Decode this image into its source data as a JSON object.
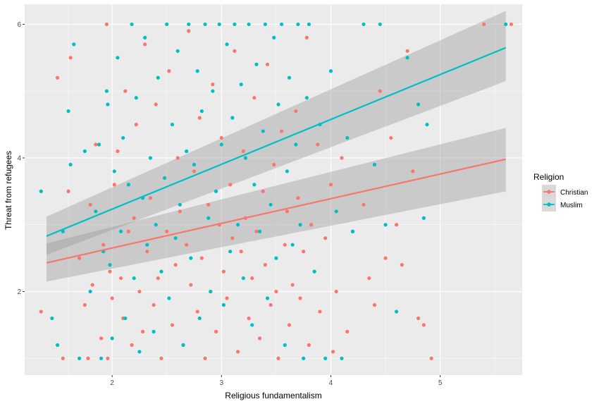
{
  "chart_data": {
    "type": "scatter",
    "xlabel": "Religious fundamentalism",
    "ylabel": "Threat from refugees",
    "xlim": [
      1.2,
      5.75
    ],
    "ylim": [
      0.75,
      6.3
    ],
    "x_ticks": [
      2,
      3,
      4,
      5
    ],
    "y_ticks": [
      2,
      4,
      6
    ],
    "x_tick_labels": [
      "2",
      "3",
      "4",
      "5"
    ],
    "y_tick_labels": [
      "2",
      "4",
      "6"
    ],
    "grid": true,
    "legend": {
      "title": "Religion",
      "placement": "right",
      "entries": [
        "Christian",
        "Muslim"
      ]
    },
    "colors": {
      "Christian": "#F8766D",
      "Muslim": "#00BFC4",
      "panel": "#EBEBEB",
      "ribbon": "#999999"
    },
    "series": [
      {
        "name": "Christian",
        "fit": {
          "x": [
            1.4,
            5.6
          ],
          "y": [
            2.43,
            3.98
          ],
          "band_low": [
            2.15,
            3.5
          ],
          "band_high": [
            2.72,
            4.45
          ]
        },
        "points": [
          [
            1.35,
            1.7
          ],
          [
            1.5,
            5.2
          ],
          [
            1.55,
            1.0
          ],
          [
            1.6,
            3.5
          ],
          [
            1.62,
            5.5
          ],
          [
            1.7,
            2.5
          ],
          [
            1.75,
            1.8
          ],
          [
            1.78,
            1.0
          ],
          [
            1.8,
            3.3
          ],
          [
            1.82,
            2.1
          ],
          [
            1.85,
            4.2
          ],
          [
            1.9,
            1.3
          ],
          [
            1.92,
            2.7
          ],
          [
            1.95,
            6.0
          ],
          [
            1.96,
            1.0
          ],
          [
            1.98,
            2.3
          ],
          [
            2.0,
            1.9
          ],
          [
            2.02,
            3.6
          ],
          [
            2.05,
            4.1
          ],
          [
            2.08,
            2.2
          ],
          [
            2.1,
            1.6
          ],
          [
            2.12,
            5.0
          ],
          [
            2.15,
            2.9
          ],
          [
            2.18,
            1.2
          ],
          [
            2.2,
            3.1
          ],
          [
            2.22,
            4.5
          ],
          [
            2.25,
            2.0
          ],
          [
            2.28,
            1.4
          ],
          [
            2.3,
            5.7
          ],
          [
            2.32,
            2.6
          ],
          [
            2.35,
            3.4
          ],
          [
            2.38,
            1.8
          ],
          [
            2.4,
            4.8
          ],
          [
            2.42,
            2.2
          ],
          [
            2.45,
            1.0
          ],
          [
            2.48,
            3.7
          ],
          [
            2.5,
            2.9
          ],
          [
            2.52,
            5.3
          ],
          [
            2.55,
            1.5
          ],
          [
            2.58,
            2.4
          ],
          [
            2.6,
            4.0
          ],
          [
            2.62,
            3.2
          ],
          [
            2.65,
            1.2
          ],
          [
            2.68,
            2.7
          ],
          [
            2.7,
            5.9
          ],
          [
            2.72,
            2.1
          ],
          [
            2.75,
            3.8
          ],
          [
            2.78,
            1.7
          ],
          [
            2.8,
            4.6
          ],
          [
            2.82,
            2.5
          ],
          [
            2.85,
            1.0
          ],
          [
            2.88,
            3.3
          ],
          [
            2.9,
            2.0
          ],
          [
            2.92,
            5.1
          ],
          [
            2.95,
            1.4
          ],
          [
            2.98,
            3.0
          ],
          [
            3.0,
            4.3
          ],
          [
            3.02,
            2.3
          ],
          [
            3.05,
            1.9
          ],
          [
            3.08,
            3.6
          ],
          [
            3.1,
            2.8
          ],
          [
            3.12,
            5.6
          ],
          [
            3.15,
            1.1
          ],
          [
            3.18,
            2.6
          ],
          [
            3.2,
            4.1
          ],
          [
            3.22,
            3.1
          ],
          [
            3.25,
            1.6
          ],
          [
            3.28,
            2.2
          ],
          [
            3.3,
            4.9
          ],
          [
            3.32,
            2.9
          ],
          [
            3.35,
            1.3
          ],
          [
            3.38,
            3.5
          ],
          [
            3.4,
            2.4
          ],
          [
            3.42,
            5.4
          ],
          [
            3.45,
            1.8
          ],
          [
            3.48,
            3.9
          ],
          [
            3.5,
            2.0
          ],
          [
            3.52,
            1.0
          ],
          [
            3.55,
            4.4
          ],
          [
            3.58,
            2.7
          ],
          [
            3.6,
            3.2
          ],
          [
            3.62,
            1.5
          ],
          [
            3.65,
            2.1
          ],
          [
            3.68,
            4.7
          ],
          [
            3.7,
            3.4
          ],
          [
            3.72,
            1.9
          ],
          [
            3.75,
            2.6
          ],
          [
            3.78,
            5.8
          ],
          [
            3.8,
            1.2
          ],
          [
            3.82,
            3.0
          ],
          [
            3.85,
            2.3
          ],
          [
            3.88,
            4.2
          ],
          [
            3.9,
            1.7
          ],
          [
            3.95,
            2.8
          ],
          [
            4.0,
            3.6
          ],
          [
            4.02,
            1.1
          ],
          [
            4.05,
            2.0
          ],
          [
            4.1,
            4.0
          ],
          [
            4.15,
            1.4
          ],
          [
            4.2,
            2.9
          ],
          [
            4.3,
            3.3
          ],
          [
            4.35,
            2.2
          ],
          [
            4.4,
            1.8
          ],
          [
            4.45,
            5.0
          ],
          [
            4.5,
            2.5
          ],
          [
            4.55,
            4.3
          ],
          [
            4.6,
            3.0
          ],
          [
            4.65,
            2.4
          ],
          [
            4.7,
            5.6
          ],
          [
            4.75,
            3.8
          ],
          [
            4.8,
            1.6
          ],
          [
            4.85,
            1.5
          ],
          [
            4.92,
            1.0
          ],
          [
            5.4,
            6.0
          ],
          [
            5.65,
            6.0
          ]
        ]
      },
      {
        "name": "Muslim",
        "fit": {
          "x": [
            1.4,
            5.6
          ],
          "y": [
            2.83,
            5.65
          ],
          "band_low": [
            2.55,
            5.15
          ],
          "band_high": [
            3.12,
            6.2
          ]
        },
        "points": [
          [
            1.35,
            3.5
          ],
          [
            1.45,
            1.6
          ],
          [
            1.5,
            1.2
          ],
          [
            1.55,
            2.9
          ],
          [
            1.6,
            4.7
          ],
          [
            1.62,
            3.9
          ],
          [
            1.65,
            5.7
          ],
          [
            1.7,
            1.0
          ],
          [
            1.75,
            4.1
          ],
          [
            1.8,
            2.0
          ],
          [
            1.85,
            3.2
          ],
          [
            1.88,
            4.2
          ],
          [
            1.9,
            1.0
          ],
          [
            1.92,
            2.6
          ],
          [
            1.95,
            5.0
          ],
          [
            1.96,
            4.8
          ],
          [
            1.98,
            2.4
          ],
          [
            2.0,
            1.3
          ],
          [
            2.02,
            3.8
          ],
          [
            2.05,
            5.5
          ],
          [
            2.08,
            2.9
          ],
          [
            2.1,
            4.3
          ],
          [
            2.12,
            1.6
          ],
          [
            2.15,
            3.6
          ],
          [
            2.18,
            6.0
          ],
          [
            2.2,
            2.2
          ],
          [
            2.22,
            4.9
          ],
          [
            2.25,
            1.1
          ],
          [
            2.28,
            3.4
          ],
          [
            2.3,
            5.8
          ],
          [
            2.32,
            2.7
          ],
          [
            2.35,
            4.0
          ],
          [
            2.38,
            1.4
          ],
          [
            2.4,
            3.0
          ],
          [
            2.42,
            5.2
          ],
          [
            2.45,
            2.3
          ],
          [
            2.48,
            3.7
          ],
          [
            2.5,
            6.0
          ],
          [
            2.52,
            1.9
          ],
          [
            2.55,
            4.5
          ],
          [
            2.58,
            2.8
          ],
          [
            2.6,
            5.6
          ],
          [
            2.62,
            3.3
          ],
          [
            2.65,
            1.2
          ],
          [
            2.68,
            4.1
          ],
          [
            2.7,
            6.0
          ],
          [
            2.72,
            2.5
          ],
          [
            2.75,
            3.9
          ],
          [
            2.78,
            5.3
          ],
          [
            2.8,
            1.6
          ],
          [
            2.82,
            4.7
          ],
          [
            2.85,
            6.0
          ],
          [
            2.88,
            3.1
          ],
          [
            2.9,
            2.0
          ],
          [
            2.92,
            5.0
          ],
          [
            2.95,
            3.5
          ],
          [
            2.98,
            6.0
          ],
          [
            3.0,
            4.2
          ],
          [
            3.02,
            1.8
          ],
          [
            3.05,
            5.7
          ],
          [
            3.08,
            2.6
          ],
          [
            3.1,
            4.6
          ],
          [
            3.12,
            6.0
          ],
          [
            3.15,
            3.0
          ],
          [
            3.18,
            5.1
          ],
          [
            3.2,
            2.2
          ],
          [
            3.22,
            4.0
          ],
          [
            3.25,
            6.0
          ],
          [
            3.28,
            1.5
          ],
          [
            3.3,
            3.6
          ],
          [
            3.32,
            5.4
          ],
          [
            3.35,
            2.9
          ],
          [
            3.38,
            4.4
          ],
          [
            3.4,
            6.0
          ],
          [
            3.42,
            1.9
          ],
          [
            3.45,
            3.3
          ],
          [
            3.48,
            5.8
          ],
          [
            3.5,
            2.5
          ],
          [
            3.52,
            4.8
          ],
          [
            3.55,
            6.0
          ],
          [
            3.58,
            1.2
          ],
          [
            3.6,
            3.8
          ],
          [
            3.62,
            5.2
          ],
          [
            3.65,
            2.7
          ],
          [
            3.68,
            4.2
          ],
          [
            3.7,
            6.0
          ],
          [
            3.72,
            3.0
          ],
          [
            3.75,
            1.0
          ],
          [
            3.78,
            4.9
          ],
          [
            3.8,
            6.0
          ],
          [
            3.85,
            2.3
          ],
          [
            3.9,
            4.5
          ],
          [
            3.95,
            1.0
          ],
          [
            4.0,
            5.3
          ],
          [
            4.05,
            3.2
          ],
          [
            4.1,
            1.0
          ],
          [
            4.15,
            4.3
          ],
          [
            4.2,
            2.9
          ],
          [
            4.3,
            6.0
          ],
          [
            4.4,
            3.9
          ],
          [
            4.45,
            6.0
          ],
          [
            4.5,
            3.0
          ],
          [
            4.6,
            1.7
          ],
          [
            4.7,
            5.5
          ],
          [
            4.8,
            4.8
          ],
          [
            4.85,
            3.1
          ],
          [
            4.88,
            4.5
          ],
          [
            5.6,
            6.0
          ]
        ]
      }
    ]
  }
}
